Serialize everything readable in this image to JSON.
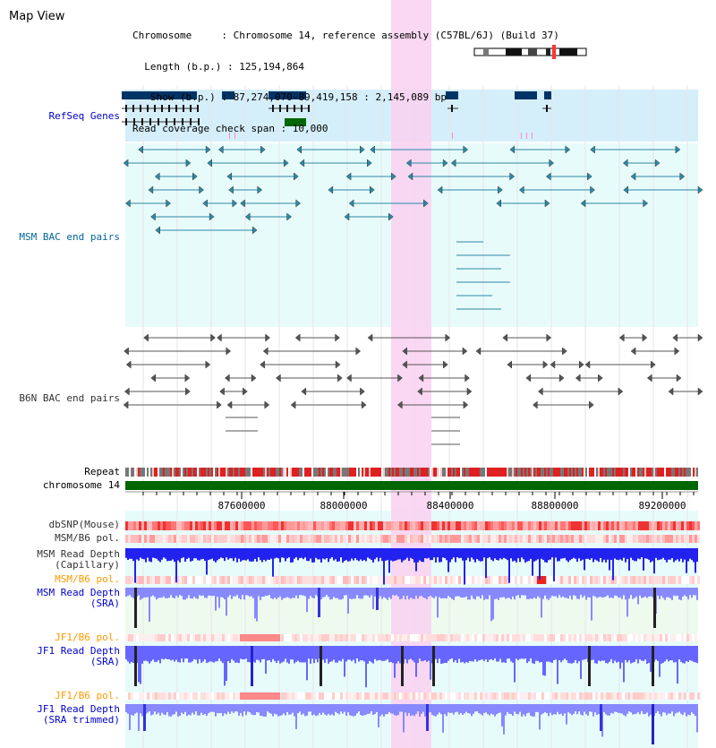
{
  "view_title": "Map View",
  "info_lines": [
    "Chromosome     : Chromosome 14, reference assembly (C57BL/6J) (Build 37)",
    "  Length (b.p.) : 125,194,864",
    "   Show (b.p.) : 87,274,070-89,419,158 : 2,145,089 bp",
    "Read coverage check span : 10,000"
  ],
  "tracks": {
    "refseq": "RefSeq Genes",
    "msm_bac": "MSM BAC end pairs",
    "b6n_bac": "B6N BAC end pairs",
    "repeat": "Repeat",
    "chromosome": "chromosome 14",
    "dbsnp": "dbSNP(Mouse)",
    "msm_b6_pol": "MSM/B6 pol.",
    "msm_depth_cap_1": "MSM Read Depth",
    "msm_depth_cap_2": "(Capillary)",
    "msm_b6_pol_2": "MSM/B6 pol.",
    "msm_depth_sra_1": "MSM Read Depth",
    "msm_depth_sra_2": "(SRA)",
    "jf1_b6_pol": "JF1/B6 pol.",
    "jf1_depth_sra_1": "JF1 Read Depth",
    "jf1_depth_sra_2": "(SRA)",
    "jf1_b6_pol_2": "JF1/B6 pol.",
    "jf1_depth_trim_1": "JF1 Read Depth",
    "jf1_depth_trim_2": "(SRA trimmed)"
  },
  "axis_ticks": [
    "87600000",
    "88000000",
    "88400000",
    "88800000",
    "89200000"
  ],
  "colors": {
    "refseq_label": "#0000cc",
    "msm_label": "#006699",
    "b6n_label": "#333333",
    "orange_label": "#ff9900",
    "blue_label": "#0000cc",
    "highlight": "#ff99dd",
    "chromosome": "#006600"
  }
}
